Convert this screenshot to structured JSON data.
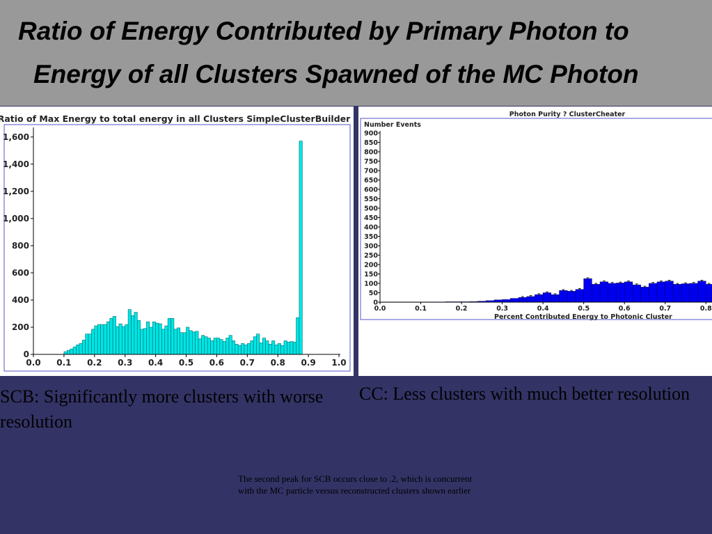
{
  "slide": {
    "title_line1": "Ratio of Energy Contributed by Primary Photon to",
    "title_line2": "Energy of all Clusters Spawned of the MC Photon",
    "caption_left": "SCB: Significantly more clusters with worse resolution",
    "caption_right": "CC: Less clusters with much better resolution",
    "note": "The second peak for SCB occurs close to .2, which is concurrent with the MC particle versus reconstructed clusters shown earlier"
  },
  "colors": {
    "header_bg": "#999999",
    "slide_bg": "#333366",
    "scb_bar": "#00e5e5",
    "cc_bar": "#0000ee"
  },
  "chart_data": [
    {
      "type": "bar",
      "title": "Ratio of Max Energy to total energy in all Clusters SimpleClusterBuilder",
      "xlabel": "",
      "ylabel": "",
      "xlim": [
        0.0,
        1.0
      ],
      "ylim": [
        0,
        1650
      ],
      "x_ticks": [
        "0.0",
        "0.1",
        "0.2",
        "0.3",
        "0.4",
        "0.5",
        "0.6",
        "0.7",
        "0.8",
        "0.9",
        "1.0"
      ],
      "y_ticks": [
        "0",
        "200",
        "400",
        "600",
        "800",
        "1,000",
        "1,200",
        "1,400",
        "1,600"
      ],
      "bin_width": 0.01,
      "x": [
        0.105,
        0.115,
        0.125,
        0.135,
        0.145,
        0.155,
        0.165,
        0.175,
        0.185,
        0.195,
        0.205,
        0.215,
        0.225,
        0.235,
        0.245,
        0.255,
        0.265,
        0.275,
        0.285,
        0.295,
        0.305,
        0.315,
        0.325,
        0.335,
        0.345,
        0.355,
        0.365,
        0.375,
        0.385,
        0.395,
        0.405,
        0.415,
        0.425,
        0.435,
        0.445,
        0.455,
        0.465,
        0.475,
        0.485,
        0.495,
        0.505,
        0.515,
        0.525,
        0.535,
        0.545,
        0.555,
        0.565,
        0.575,
        0.585,
        0.595,
        0.605,
        0.615,
        0.625,
        0.635,
        0.645,
        0.655,
        0.665,
        0.675,
        0.685,
        0.695,
        0.705,
        0.715,
        0.725,
        0.735,
        0.745,
        0.755,
        0.765,
        0.775,
        0.785,
        0.795,
        0.805,
        0.815,
        0.825,
        0.835,
        0.845,
        0.855,
        0.865,
        0.875,
        0.885,
        0.895,
        0.905,
        0.915,
        0.925,
        0.935,
        0.945,
        0.955,
        0.965,
        0.975,
        0.985,
        0.995
      ],
      "values": [
        20,
        30,
        40,
        55,
        70,
        80,
        105,
        150,
        150,
        185,
        210,
        220,
        220,
        220,
        240,
        265,
        280,
        205,
        225,
        205,
        220,
        330,
        285,
        310,
        250,
        185,
        190,
        240,
        200,
        240,
        230,
        225,
        185,
        210,
        265,
        265,
        185,
        195,
        160,
        160,
        200,
        175,
        165,
        170,
        115,
        140,
        130,
        120,
        100,
        120,
        120,
        110,
        95,
        120,
        140,
        100,
        75,
        65,
        80,
        70,
        80,
        100,
        130,
        150,
        85,
        120,
        100,
        75,
        100,
        70,
        80,
        65,
        100,
        90,
        95,
        90,
        270,
        1570,
        0,
        0,
        0,
        0,
        0,
        0,
        0,
        0,
        0,
        0,
        0,
        0
      ]
    },
    {
      "type": "bar",
      "title": "Photon Purity ? ClusterCheater",
      "xlabel": "Percent Contributed Energy to Photonic Cluster",
      "ylabel": "Number Events",
      "xlim": [
        0.0,
        0.82
      ],
      "ylim": [
        0,
        900
      ],
      "x_ticks": [
        "0.0",
        "0.1",
        "0.2",
        "0.3",
        "0.4",
        "0.5",
        "0.6",
        "0.7",
        "0.8"
      ],
      "y_ticks": [
        "0",
        "50",
        "100",
        "150",
        "200",
        "250",
        "300",
        "350",
        "400",
        "450",
        "500",
        "550",
        "600",
        "650",
        "700",
        "750",
        "800",
        "850",
        "900"
      ],
      "bin_width": 0.02,
      "x": [
        0.01,
        0.03,
        0.05,
        0.07,
        0.09,
        0.11,
        0.13,
        0.15,
        0.17,
        0.19,
        0.21,
        0.23,
        0.25,
        0.27,
        0.29,
        0.31,
        0.33,
        0.35,
        0.37,
        0.39,
        0.41,
        0.43,
        0.45,
        0.47,
        0.49,
        0.51,
        0.53,
        0.55,
        0.57,
        0.59,
        0.61,
        0.63,
        0.65,
        0.67,
        0.69,
        0.71,
        0.73,
        0.75,
        0.77,
        0.79,
        0.81
      ],
      "values": [
        1,
        1,
        1,
        1,
        1,
        1,
        1,
        1,
        2,
        2,
        2,
        3,
        5,
        8,
        12,
        14,
        20,
        25,
        30,
        40,
        50,
        40,
        62,
        58,
        68,
        125,
        95,
        108,
        100,
        102,
        108,
        92,
        80,
        100,
        108,
        112,
        95,
        98,
        100,
        112,
        95
      ]
    }
  ]
}
